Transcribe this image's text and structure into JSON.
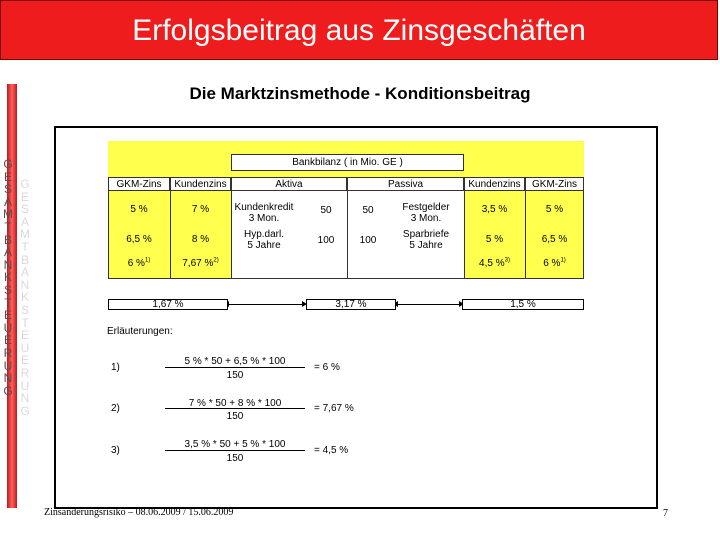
{
  "header": {
    "title": "Erfolgsbeitrag aus Zinsgeschäften"
  },
  "subtitle": "Die Marktzinsmethode - Konditionsbeitrag",
  "sidebar": {
    "letters": [
      "G",
      "E",
      "S",
      "A",
      "M",
      "T",
      "B",
      "A",
      "N",
      "K",
      "S",
      "T",
      "E",
      "U",
      "E",
      "R",
      "U",
      "N",
      "G"
    ]
  },
  "table": {
    "caption": "Bankbilanz ( in Mio. GE )",
    "headers": {
      "ckm_left": "GKM-Zins",
      "kunden_left": "Kundenzins",
      "aktiva": "Aktiva",
      "passiva": "Passiva",
      "kunden_right": "Kundenzins",
      "ckm_right": "GKM-Zins"
    },
    "left_rows": [
      {
        "ckm": "5 %",
        "kunden": "7 %"
      },
      {
        "ckm": "6,5 %",
        "kunden": "8 %"
      },
      {
        "ckm": "6 %",
        "ckm_sup": "1)",
        "kunden": "7,67 %",
        "kunden_sup": "2)"
      }
    ],
    "aktiva_items": [
      {
        "label": "Kundenkredit\n3 Mon.",
        "value": "50"
      },
      {
        "label": "Hyp.darl.\n5 Jahre",
        "value": "100"
      }
    ],
    "passiva_items": [
      {
        "label": "Festgelder\n3 Mon.",
        "value": "50"
      },
      {
        "label": "Sparbriefe\n5 Jahre",
        "value": "100"
      }
    ],
    "right_rows": [
      {
        "kunden": "3,5 %",
        "ckm": "5 %"
      },
      {
        "kunden": "5 %",
        "ckm": "6,5 %"
      },
      {
        "kunden": "4,5 %",
        "kunden_sup": "3)",
        "ckm": "6 %",
        "ckm_sup": "1)"
      }
    ]
  },
  "result_bar": {
    "left": "1,67 %",
    "middle": "3,17 %",
    "right": "1,5 %"
  },
  "explanations": {
    "heading": "Erläuterungen:",
    "items": [
      {
        "num": "1)",
        "numerator": "5 % * 50 + 6,5 % * 100",
        "denominator": "150",
        "result": "= 6 %"
      },
      {
        "num": "2)",
        "numerator": "7 % * 50 + 8 % * 100",
        "denominator": "150",
        "result": "= 7,67 %"
      },
      {
        "num": "3)",
        "numerator": "3,5 % * 50 + 5 % * 100",
        "denominator": "150",
        "result": "= 4,5 %"
      }
    ]
  },
  "footer": {
    "left": "Zinsänderungsrisiko – 08.06.2009 / 15.06.2009",
    "page": "7"
  },
  "colors": {
    "title_bar": "#ee1c1c",
    "table_fill": "#ffff4d",
    "sidebar_band": "#d02020"
  }
}
